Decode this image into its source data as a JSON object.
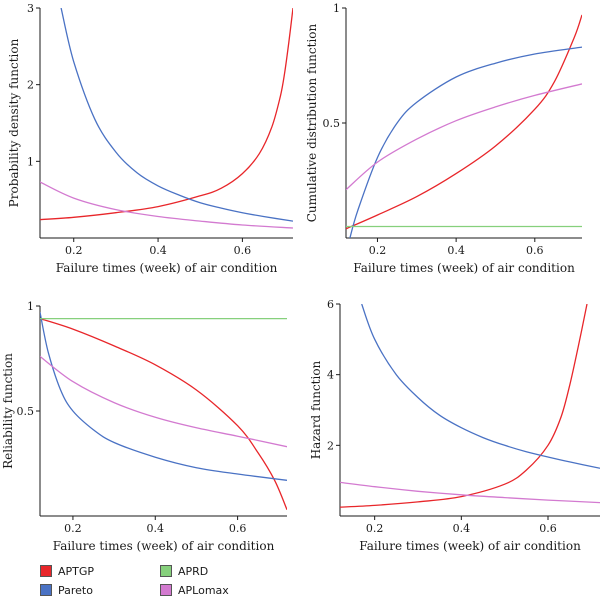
{
  "colors": {
    "APTGP": "#e8262a",
    "Pareto": "#4a72c4",
    "APRD": "#86d07c",
    "APLomax": "#d37ad0"
  },
  "legend": {
    "items": [
      {
        "label": "APTGP",
        "color": "#e8262a"
      },
      {
        "label": "APRD",
        "color": "#86d07c"
      },
      {
        "label": "Pareto",
        "color": "#4a72c4"
      },
      {
        "label": "APLomax",
        "color": "#d37ad0"
      }
    ]
  },
  "chart_data": [
    {
      "type": "line",
      "xlabel": "Failure times (week) of air condition",
      "ylabel": "Probability density function",
      "xlim": [
        0.12,
        0.72
      ],
      "ylim": [
        0,
        3
      ],
      "xticks": [
        0.2,
        0.4,
        0.6
      ],
      "yticks": [
        1,
        2,
        3
      ],
      "series": [
        {
          "name": "APTGP",
          "color": "#e8262a",
          "x": [
            0.12,
            0.2,
            0.3,
            0.4,
            0.5,
            0.55,
            0.6,
            0.64,
            0.67,
            0.69,
            0.7,
            0.71,
            0.72
          ],
          "y": [
            0.24,
            0.27,
            0.33,
            0.41,
            0.55,
            0.65,
            0.84,
            1.1,
            1.45,
            1.85,
            2.15,
            2.55,
            3.0
          ]
        },
        {
          "name": "Pareto",
          "color": "#4a72c4",
          "x": [
            0.17,
            0.2,
            0.25,
            0.3,
            0.35,
            0.4,
            0.45,
            0.5,
            0.55,
            0.6,
            0.65,
            0.72
          ],
          "y": [
            3.0,
            2.3,
            1.55,
            1.12,
            0.85,
            0.68,
            0.56,
            0.46,
            0.39,
            0.33,
            0.28,
            0.22
          ]
        },
        {
          "name": "APLomax",
          "color": "#d37ad0",
          "x": [
            0.12,
            0.2,
            0.3,
            0.4,
            0.5,
            0.6,
            0.72
          ],
          "y": [
            0.73,
            0.52,
            0.37,
            0.28,
            0.22,
            0.17,
            0.13
          ]
        }
      ]
    },
    {
      "type": "line",
      "xlabel": "Failure times (week) of air condition",
      "ylabel": "Cumulative distribution function",
      "xlim": [
        0.12,
        0.72
      ],
      "ylim": [
        0,
        1
      ],
      "xticks": [
        0.2,
        0.4,
        0.6
      ],
      "yticks": [
        0.5,
        1
      ],
      "series": [
        {
          "name": "APTGP",
          "color": "#e8262a",
          "x": [
            0.12,
            0.2,
            0.3,
            0.4,
            0.5,
            0.6,
            0.65,
            0.7,
            0.72
          ],
          "y": [
            0.04,
            0.1,
            0.18,
            0.28,
            0.4,
            0.56,
            0.68,
            0.87,
            0.97
          ]
        },
        {
          "name": "Pareto",
          "color": "#4a72c4",
          "x": [
            0.13,
            0.15,
            0.2,
            0.25,
            0.3,
            0.4,
            0.5,
            0.6,
            0.72
          ],
          "y": [
            0.0,
            0.12,
            0.35,
            0.5,
            0.59,
            0.7,
            0.76,
            0.8,
            0.83
          ]
        },
        {
          "name": "APRD",
          "color": "#86d07c",
          "x": [
            0.12,
            0.72
          ],
          "y": [
            0.05,
            0.05
          ]
        },
        {
          "name": "APLomax",
          "color": "#d37ad0",
          "x": [
            0.12,
            0.2,
            0.3,
            0.4,
            0.5,
            0.6,
            0.72
          ],
          "y": [
            0.21,
            0.33,
            0.43,
            0.51,
            0.57,
            0.62,
            0.67
          ]
        }
      ]
    },
    {
      "type": "line",
      "xlabel": "Failure times (week) of air condition",
      "ylabel": "Reliability function",
      "xlim": [
        0.12,
        0.72
      ],
      "ylim": [
        0,
        1
      ],
      "xticks": [
        0.2,
        0.4,
        0.6
      ],
      "yticks": [
        0.5,
        1
      ],
      "series": [
        {
          "name": "APTGP",
          "color": "#e8262a",
          "x": [
            0.12,
            0.2,
            0.3,
            0.4,
            0.5,
            0.6,
            0.65,
            0.69,
            0.72
          ],
          "y": [
            0.94,
            0.89,
            0.81,
            0.72,
            0.6,
            0.43,
            0.3,
            0.17,
            0.03
          ]
        },
        {
          "name": "Pareto",
          "color": "#4a72c4",
          "x": [
            0.12,
            0.14,
            0.17,
            0.2,
            0.25,
            0.3,
            0.4,
            0.5,
            0.6,
            0.72
          ],
          "y": [
            0.97,
            0.78,
            0.6,
            0.5,
            0.41,
            0.35,
            0.28,
            0.23,
            0.2,
            0.17
          ]
        },
        {
          "name": "APRD",
          "color": "#86d07c",
          "x": [
            0.12,
            0.72
          ],
          "y": [
            0.94,
            0.94
          ]
        },
        {
          "name": "APLomax",
          "color": "#d37ad0",
          "x": [
            0.12,
            0.2,
            0.3,
            0.4,
            0.5,
            0.6,
            0.72
          ],
          "y": [
            0.76,
            0.64,
            0.54,
            0.47,
            0.42,
            0.38,
            0.33
          ]
        }
      ]
    },
    {
      "type": "line",
      "xlabel": "Failure times (week) of air condition",
      "ylabel": "Hazard function",
      "xlim": [
        0.12,
        0.72
      ],
      "ylim": [
        0,
        6
      ],
      "xticks": [
        0.2,
        0.4,
        0.6
      ],
      "yticks": [
        2,
        4,
        6
      ],
      "series": [
        {
          "name": "APTGP",
          "color": "#e8262a",
          "x": [
            0.12,
            0.2,
            0.3,
            0.4,
            0.5,
            0.55,
            0.6,
            0.63,
            0.65,
            0.67,
            0.69
          ],
          "y": [
            0.25,
            0.3,
            0.4,
            0.55,
            0.9,
            1.3,
            2.0,
            2.8,
            3.7,
            4.8,
            6.0
          ]
        },
        {
          "name": "Pareto",
          "color": "#4a72c4",
          "x": [
            0.17,
            0.2,
            0.25,
            0.3,
            0.35,
            0.4,
            0.45,
            0.5,
            0.55,
            0.6,
            0.65,
            0.72
          ],
          "y": [
            6.0,
            5.0,
            4.0,
            3.35,
            2.85,
            2.5,
            2.22,
            2.0,
            1.82,
            1.67,
            1.53,
            1.35
          ]
        },
        {
          "name": "APLomax",
          "color": "#d37ad0",
          "x": [
            0.12,
            0.2,
            0.3,
            0.4,
            0.5,
            0.6,
            0.72
          ],
          "y": [
            0.95,
            0.83,
            0.7,
            0.6,
            0.52,
            0.45,
            0.38
          ]
        }
      ]
    }
  ]
}
